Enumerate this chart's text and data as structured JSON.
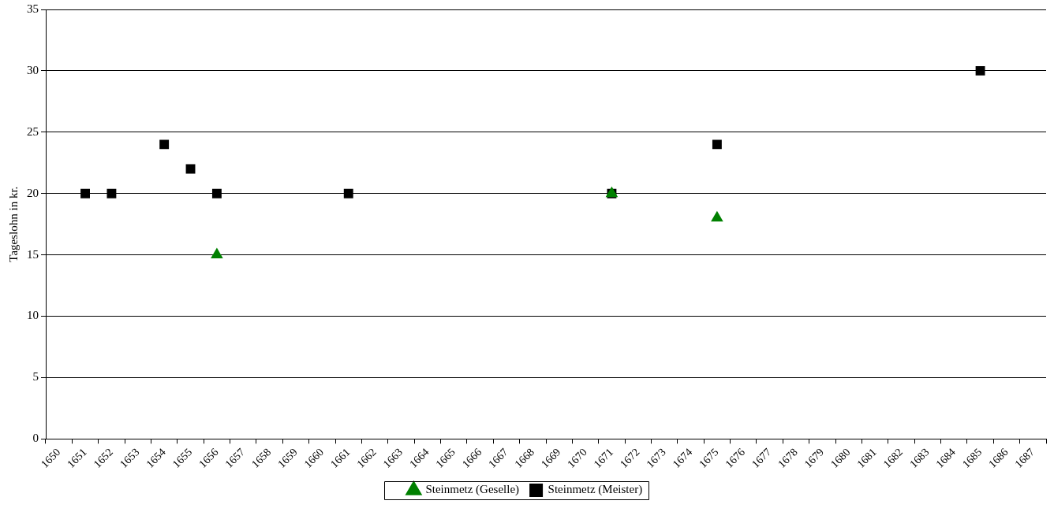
{
  "chart_data": {
    "type": "scatter",
    "ylabel": "Tageslohn in kr.",
    "categories": [
      "1650",
      "1651",
      "1652",
      "1653",
      "1654",
      "1655",
      "1656",
      "1657",
      "1658",
      "1659",
      "1660",
      "1661",
      "1662",
      "1663",
      "1664",
      "1665",
      "1666",
      "1667",
      "1668",
      "1669",
      "1670",
      "1671",
      "1672",
      "1673",
      "1674",
      "1675",
      "1676",
      "1677",
      "1678",
      "1679",
      "1680",
      "1681",
      "1682",
      "1683",
      "1684",
      "1685",
      "1686",
      "1687"
    ],
    "series": [
      {
        "name": "Steinmetz (Meister)",
        "marker": "square",
        "color": "#000000",
        "values": [
          null,
          20,
          20,
          null,
          24,
          22,
          20,
          null,
          null,
          null,
          null,
          20,
          null,
          null,
          null,
          null,
          null,
          null,
          null,
          null,
          null,
          20,
          null,
          null,
          null,
          24,
          null,
          null,
          null,
          null,
          null,
          null,
          null,
          null,
          null,
          30,
          null,
          null
        ]
      },
      {
        "name": "Steinmetz (Geselle)",
        "marker": "triangle",
        "color": "#008000",
        "values": [
          null,
          null,
          null,
          null,
          null,
          null,
          15,
          null,
          null,
          null,
          null,
          null,
          null,
          null,
          null,
          null,
          null,
          null,
          null,
          null,
          null,
          20,
          null,
          null,
          null,
          18,
          null,
          null,
          null,
          null,
          null,
          null,
          null,
          null,
          null,
          null,
          null,
          null
        ]
      }
    ],
    "ylim": [
      0,
      35
    ],
    "yticks": [
      0,
      5,
      10,
      15,
      20,
      25,
      30,
      35
    ],
    "grid": "y",
    "legend": "bottom"
  }
}
